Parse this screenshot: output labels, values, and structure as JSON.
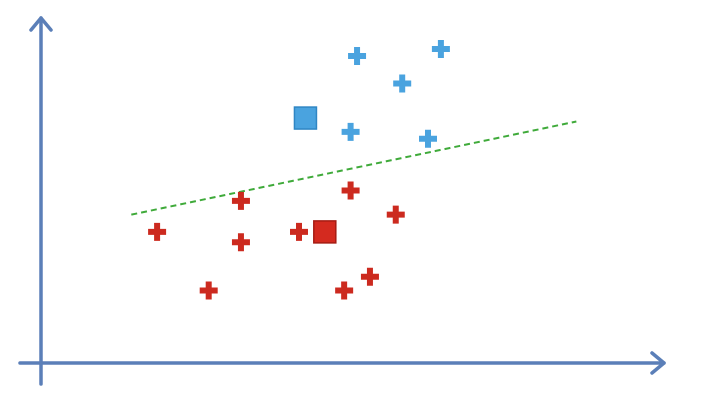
{
  "chart_data": {
    "type": "scatter",
    "title": "",
    "xlabel": "",
    "ylabel": "",
    "xlim": [
      0,
      10
    ],
    "ylim": [
      0,
      10
    ],
    "grid": false,
    "legend": "none",
    "series": [
      {
        "class": "positive",
        "marker": "plus",
        "color": "#4aa3df",
        "points": [
          {
            "x": 4.9,
            "y": 8.9
          },
          {
            "x": 6.2,
            "y": 9.1
          },
          {
            "x": 5.6,
            "y": 8.1
          },
          {
            "x": 4.8,
            "y": 6.7
          },
          {
            "x": 6.0,
            "y": 6.5
          }
        ]
      },
      {
        "class": "negative",
        "marker": "plus",
        "color": "#cc2a1f",
        "points": [
          {
            "x": 3.1,
            "y": 4.7
          },
          {
            "x": 4.8,
            "y": 5.0
          },
          {
            "x": 5.5,
            "y": 4.3
          },
          {
            "x": 1.8,
            "y": 3.8
          },
          {
            "x": 3.1,
            "y": 3.5
          },
          {
            "x": 4.0,
            "y": 3.8
          },
          {
            "x": 2.6,
            "y": 2.1
          },
          {
            "x": 4.7,
            "y": 2.1
          },
          {
            "x": 5.1,
            "y": 2.5
          }
        ]
      }
    ],
    "centroids": [
      {
        "class": "positive",
        "marker": "square",
        "color": "#4aa3df",
        "border": "#2f86c4",
        "x": 4.1,
        "y": 7.1
      },
      {
        "class": "negative",
        "marker": "square",
        "color": "#d42a1f",
        "border": "#a61c13",
        "x": 4.4,
        "y": 3.8
      }
    ],
    "decision_boundary": {
      "style": "dashed",
      "color": "#3faa3a",
      "from": {
        "x": 1.4,
        "y": 4.3
      },
      "to": {
        "x": 8.3,
        "y": 7.0
      }
    },
    "axis_color": "#5b7fb8"
  }
}
